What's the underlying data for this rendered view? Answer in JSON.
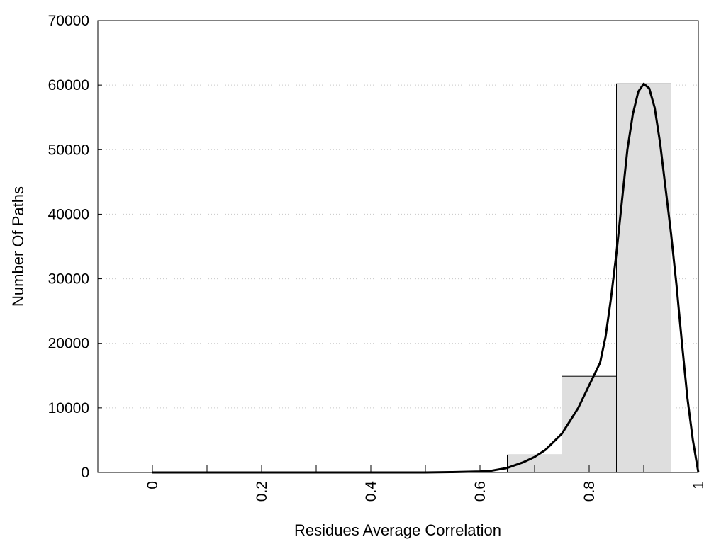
{
  "chart_data": {
    "type": "bar",
    "xlabel": "Residues Average Correlation",
    "ylabel": "Number Of Paths",
    "xlim": [
      -0.1,
      1.0
    ],
    "ylim": [
      0,
      70000
    ],
    "x_ticks": [
      {
        "v": 0,
        "label": "0"
      },
      {
        "v": 0.2,
        "label": "0.2"
      },
      {
        "v": 0.4,
        "label": "0.4"
      },
      {
        "v": 0.6,
        "label": "0.6"
      },
      {
        "v": 0.8,
        "label": "0.8"
      },
      {
        "v": 1.0,
        "label": "1"
      }
    ],
    "x_minor_ticks": [
      0.1,
      0.3,
      0.5,
      0.7,
      0.9
    ],
    "y_ticks": [
      {
        "v": 0,
        "label": "0"
      },
      {
        "v": 10000,
        "label": "10000"
      },
      {
        "v": 20000,
        "label": "20000"
      },
      {
        "v": 30000,
        "label": "30000"
      },
      {
        "v": 40000,
        "label": "40000"
      },
      {
        "v": 50000,
        "label": "50000"
      },
      {
        "v": 60000,
        "label": "60000"
      },
      {
        "v": 70000,
        "label": "70000"
      }
    ],
    "grid": "horizontal-dotted",
    "bar_fill": "#dedede",
    "bar_stroke": "#000000",
    "curve_color": "#000000",
    "bars": [
      {
        "x0": 0.0,
        "x1": 0.1,
        "value": 0
      },
      {
        "x0": 0.1,
        "x1": 0.2,
        "value": 0
      },
      {
        "x0": 0.2,
        "x1": 0.3,
        "value": 0
      },
      {
        "x0": 0.3,
        "x1": 0.4,
        "value": 0
      },
      {
        "x0": 0.4,
        "x1": 0.5,
        "value": 0
      },
      {
        "x0": 0.5,
        "x1": 0.6,
        "value": 0
      },
      {
        "x0": 0.6,
        "x1": 0.65,
        "value": 0
      },
      {
        "x0": 0.65,
        "x1": 0.75,
        "value": 2700
      },
      {
        "x0": 0.75,
        "x1": 0.85,
        "value": 14900
      },
      {
        "x0": 0.85,
        "x1": 0.95,
        "value": 60200
      }
    ],
    "fit_curve": [
      [
        0.0,
        0
      ],
      [
        0.5,
        0
      ],
      [
        0.55,
        50
      ],
      [
        0.6,
        150
      ],
      [
        0.62,
        250
      ],
      [
        0.65,
        700
      ],
      [
        0.68,
        1600
      ],
      [
        0.7,
        2400
      ],
      [
        0.72,
        3500
      ],
      [
        0.75,
        6000
      ],
      [
        0.78,
        10000
      ],
      [
        0.8,
        13500
      ],
      [
        0.82,
        17000
      ],
      [
        0.83,
        21000
      ],
      [
        0.84,
        27000
      ],
      [
        0.85,
        34000
      ],
      [
        0.86,
        42000
      ],
      [
        0.87,
        50000
      ],
      [
        0.88,
        55500
      ],
      [
        0.89,
        59000
      ],
      [
        0.9,
        60200
      ],
      [
        0.91,
        59500
      ],
      [
        0.92,
        56500
      ],
      [
        0.93,
        51000
      ],
      [
        0.94,
        44000
      ],
      [
        0.95,
        37000
      ],
      [
        0.96,
        29000
      ],
      [
        0.97,
        20000
      ],
      [
        0.98,
        11500
      ],
      [
        0.99,
        5000
      ],
      [
        1.0,
        0
      ]
    ]
  }
}
